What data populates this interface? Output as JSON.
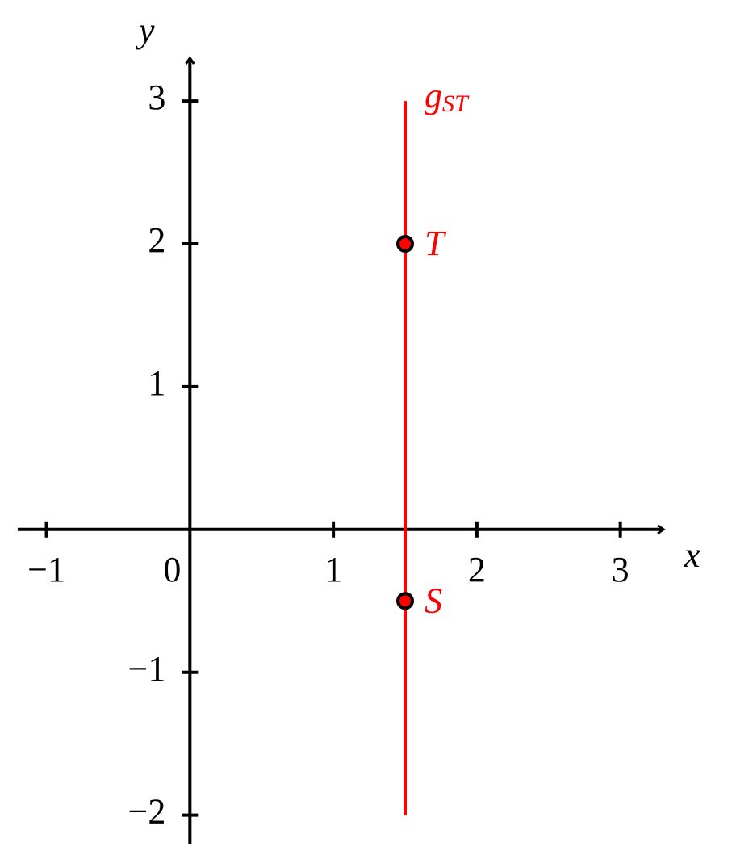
{
  "chart_data": {
    "type": "scatter",
    "xlabel": "x",
    "ylabel": "y",
    "xlim": [
      -1.2,
      3.3
    ],
    "ylim": [
      -2.2,
      3.3
    ],
    "xticks": [
      {
        "value": -1,
        "label": "−1"
      },
      0,
      1,
      2,
      3
    ],
    "yticks": [
      {
        "value": -2,
        "label": "−2"
      },
      {
        "value": -1,
        "label": "−1"
      },
      1,
      2,
      3
    ],
    "series": [
      {
        "name": "g",
        "name_sub": "ST",
        "color": "#ff0000",
        "x": [
          1.5,
          1.5
        ],
        "values": [
          -2,
          3
        ]
      }
    ],
    "points": {
      "labels": [
        "T",
        "S"
      ],
      "x": [
        1.5,
        1.5
      ],
      "values": [
        2,
        -0.5
      ],
      "color": "#ff0000"
    }
  }
}
